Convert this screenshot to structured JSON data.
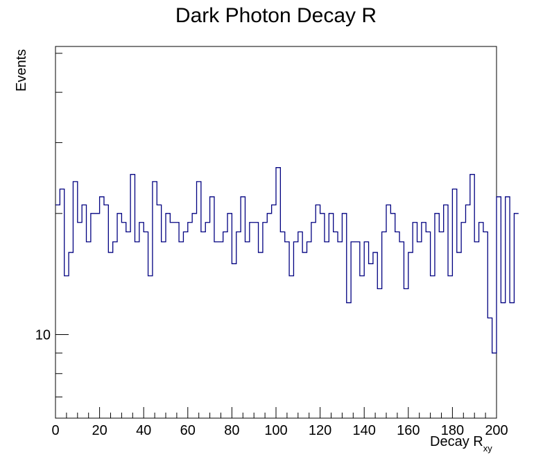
{
  "chart_data": {
    "type": "histogram",
    "title": "Dark Photon Decay R",
    "xlabel": "Decay R",
    "xlabel_subscript": "xy",
    "ylabel": "Events",
    "xlim": [
      0,
      200
    ],
    "ylim": [
      6.2,
      52
    ],
    "y_scale": "log",
    "grid": false,
    "legend": "none",
    "line_color": "#000080",
    "bin_width": 2,
    "x_ticks": [
      0,
      20,
      40,
      60,
      80,
      100,
      120,
      140,
      160,
      180,
      200
    ],
    "y_tick_labels": [
      {
        "value": 10,
        "label": "10"
      }
    ],
    "values": [
      21,
      23,
      14,
      16,
      24,
      19,
      21,
      17,
      20,
      20,
      22,
      21,
      16,
      17,
      20,
      19,
      18,
      25,
      17,
      19,
      18,
      14,
      24,
      21,
      17,
      20,
      19,
      19,
      17,
      18,
      19,
      20,
      24,
      18,
      19,
      22,
      17,
      17,
      18,
      20,
      15,
      18,
      22,
      17,
      19,
      19,
      16,
      19,
      20,
      21,
      26,
      18,
      17,
      14,
      17,
      18,
      16,
      17,
      19,
      21,
      20,
      17,
      20,
      18,
      17,
      20,
      12,
      17,
      17,
      14,
      17,
      15,
      16,
      13,
      18,
      21,
      20,
      18,
      17,
      13,
      16,
      19,
      17,
      19,
      18,
      14,
      20,
      18,
      21,
      14,
      23,
      16,
      19,
      21,
      25,
      17,
      19,
      18,
      11,
      9,
      22,
      12,
      22,
      12,
      20
    ]
  }
}
